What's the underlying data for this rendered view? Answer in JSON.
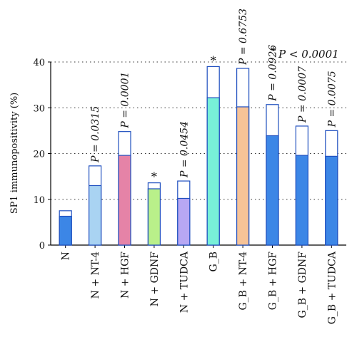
{
  "chart_data": {
    "type": "bar",
    "title": "",
    "xlabel": "",
    "ylabel": "SP1 immunopositivity (%)",
    "ylim": [
      0,
      40
    ],
    "yticks": [
      "0",
      "10",
      "20",
      "30",
      "40"
    ],
    "grid": "dotted horizontal",
    "categories": [
      "N",
      "N + NT-4",
      "N + HGF",
      "N + GDNF",
      "N + TUDCA",
      "G_B",
      "G_B + NT-4",
      "G_B + HGF",
      "G_B + GDNF",
      "G_B + TUDCA"
    ],
    "series": [
      {
        "name": "",
        "values": [
          6.3,
          13.0,
          19.6,
          12.3,
          10.2,
          32.2,
          30.2,
          23.9,
          19.6,
          19.4
        ]
      },
      {
        "name": "",
        "values": [
          7.5,
          17.3,
          24.8,
          13.6,
          14.0,
          39.0,
          38.6,
          30.7,
          26.0,
          25.0
        ]
      }
    ],
    "colors": [
      "#3c86e6",
      "#a9d3f2",
      "#e583a7",
      "#b9f08a",
      "#b7a7f3",
      "#78f0d8",
      "#f7c397",
      "#3c86e6",
      "#3c86e6",
      "#3c86e6"
    ],
    "annotations": [
      "",
      "P = 0.0315",
      "P = 0.0001",
      "*",
      "P = 0.0454",
      "*",
      "P = 0.6753",
      "P = 0.0926",
      "P = 0.0007",
      "P = 0.0075"
    ],
    "note_star": "*",
    "note_text": "P < 0.0001"
  }
}
